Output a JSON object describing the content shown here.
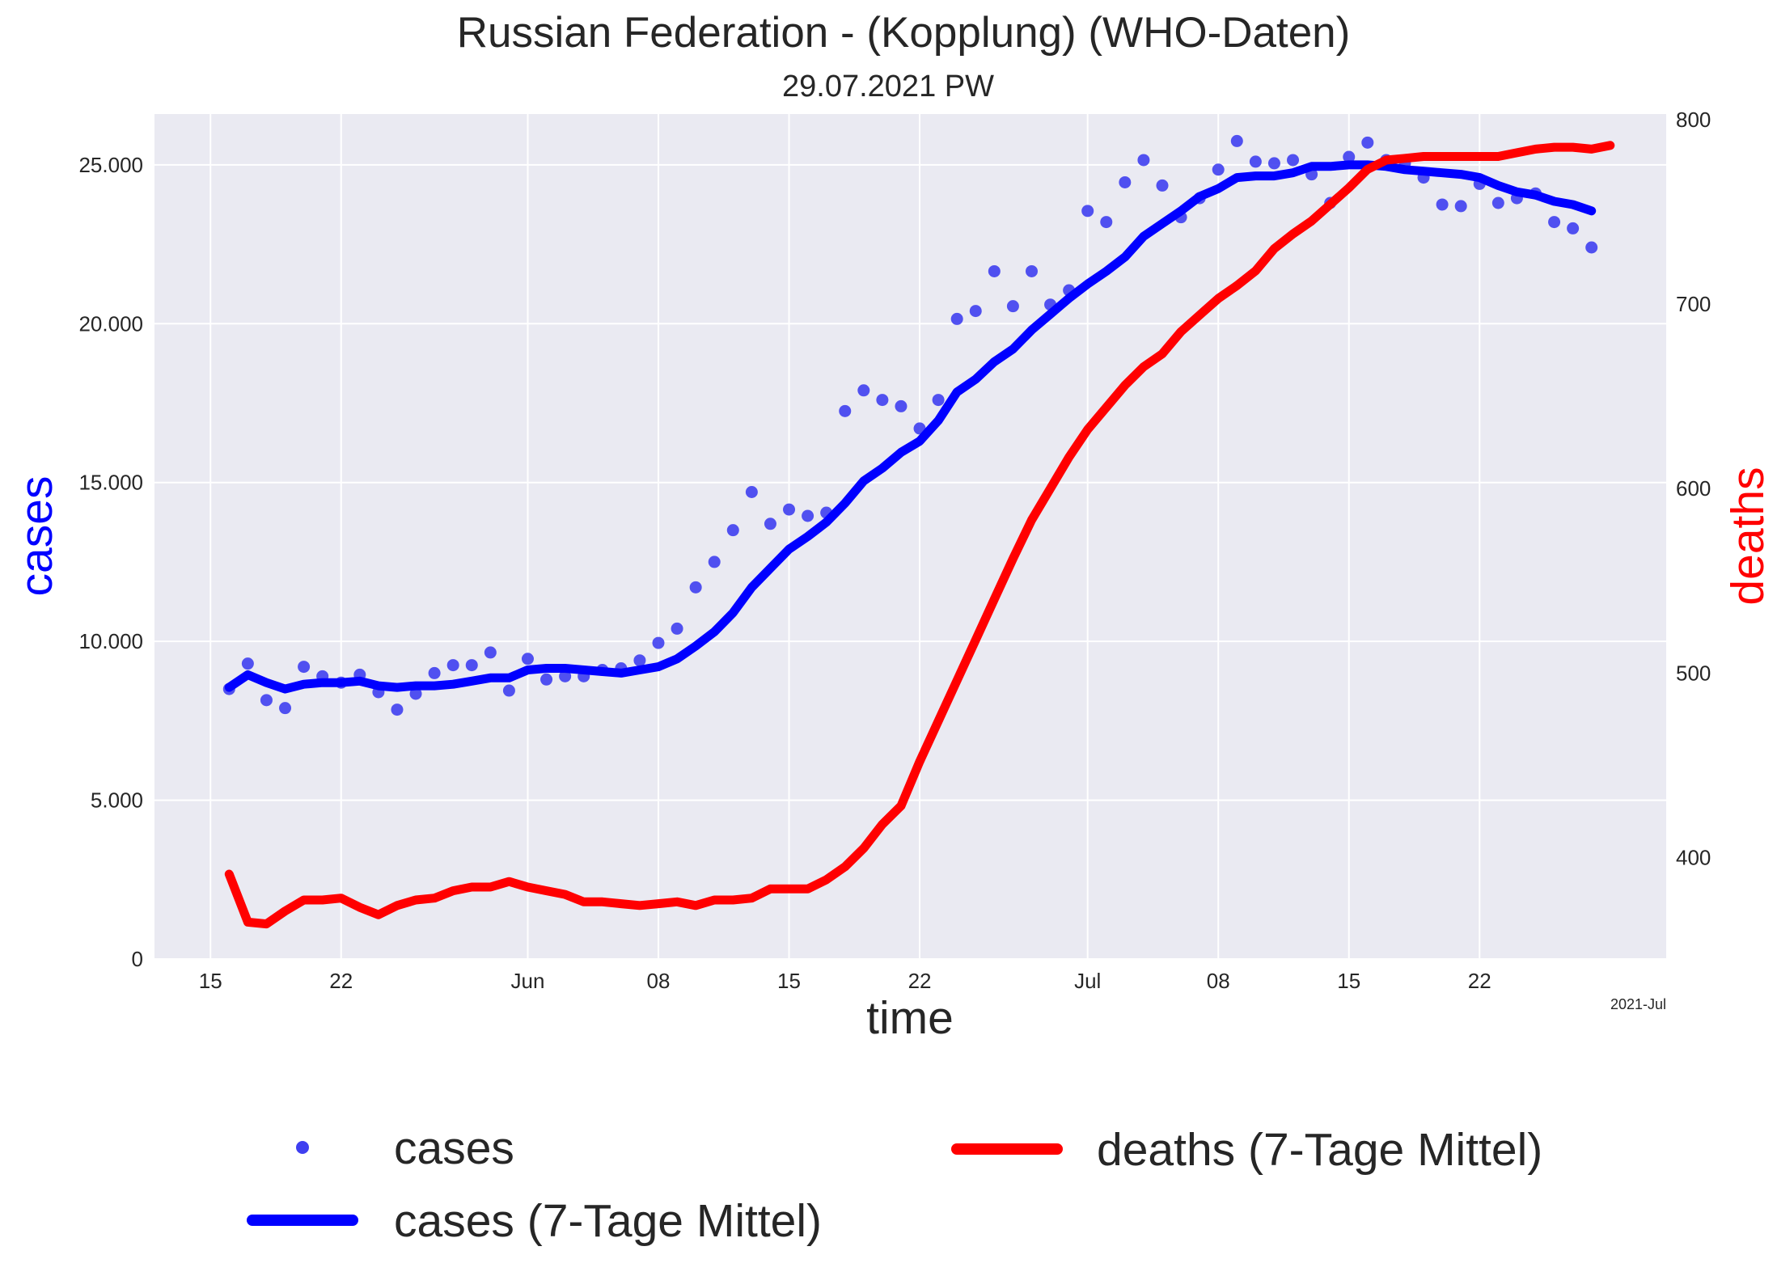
{
  "chart_data": {
    "type": "line",
    "title": "Russian Federation - (Kopplung)  (WHO-Daten)",
    "subtitle": "29.07.2021 PW",
    "xlabel": "time",
    "ylabel_left": "cases",
    "ylabel_right": "deaths",
    "x_corner_label": "2021-Jul",
    "x_ticks": [
      {
        "date": "2021-05-15",
        "label": "15"
      },
      {
        "date": "2021-05-22",
        "label": "22"
      },
      {
        "date": "2021-06-01",
        "label": "Jun"
      },
      {
        "date": "2021-06-08",
        "label": "08"
      },
      {
        "date": "2021-06-15",
        "label": "15"
      },
      {
        "date": "2021-06-22",
        "label": "22"
      },
      {
        "date": "2021-07-01",
        "label": "Jul"
      },
      {
        "date": "2021-07-08",
        "label": "08"
      },
      {
        "date": "2021-07-15",
        "label": "15"
      },
      {
        "date": "2021-07-22",
        "label": "22"
      }
    ],
    "y_left_ticks": [
      {
        "value": 0,
        "label": "0"
      },
      {
        "value": 5000,
        "label": "5.000"
      },
      {
        "value": 10000,
        "label": "10.000"
      },
      {
        "value": 15000,
        "label": "15.000"
      },
      {
        "value": 20000,
        "label": "20.000"
      },
      {
        "value": 25000,
        "label": "25.000"
      }
    ],
    "y_right_ticks": [
      {
        "value": 400,
        "label": "400"
      },
      {
        "value": 500,
        "label": "500"
      },
      {
        "value": 600,
        "label": "600"
      },
      {
        "value": 700,
        "label": "700"
      },
      {
        "value": 800,
        "label": "800"
      }
    ],
    "xlim": [
      "2021-05-12",
      "2021-08-01"
    ],
    "ylim_left": [
      0,
      26600
    ],
    "ylim_right": [
      345,
      803
    ],
    "grid": true,
    "legend_position": "bottom",
    "legend": {
      "cases": "cases",
      "cases_avg": "cases (7-Tage Mittel)",
      "deaths_avg": "deaths (7-Tage Mittel)"
    },
    "x_dates": [
      "2021-05-16",
      "2021-05-17",
      "2021-05-18",
      "2021-05-19",
      "2021-05-20",
      "2021-05-21",
      "2021-05-22",
      "2021-05-23",
      "2021-05-24",
      "2021-05-25",
      "2021-05-26",
      "2021-05-27",
      "2021-05-28",
      "2021-05-29",
      "2021-05-30",
      "2021-05-31",
      "2021-06-01",
      "2021-06-02",
      "2021-06-03",
      "2021-06-04",
      "2021-06-05",
      "2021-06-06",
      "2021-06-07",
      "2021-06-08",
      "2021-06-09",
      "2021-06-10",
      "2021-06-11",
      "2021-06-12",
      "2021-06-13",
      "2021-06-14",
      "2021-06-15",
      "2021-06-16",
      "2021-06-17",
      "2021-06-18",
      "2021-06-19",
      "2021-06-20",
      "2021-06-21",
      "2021-06-22",
      "2021-06-23",
      "2021-06-24",
      "2021-06-25",
      "2021-06-26",
      "2021-06-27",
      "2021-06-28",
      "2021-06-29",
      "2021-06-30",
      "2021-07-01",
      "2021-07-02",
      "2021-07-03",
      "2021-07-04",
      "2021-07-05",
      "2021-07-06",
      "2021-07-07",
      "2021-07-08",
      "2021-07-09",
      "2021-07-10",
      "2021-07-11",
      "2021-07-12",
      "2021-07-13",
      "2021-07-14",
      "2021-07-15",
      "2021-07-16",
      "2021-07-17",
      "2021-07-18",
      "2021-07-19",
      "2021-07-20",
      "2021-07-21",
      "2021-07-22",
      "2021-07-23",
      "2021-07-24",
      "2021-07-25",
      "2021-07-26",
      "2021-07-27",
      "2021-07-28",
      "2021-07-29"
    ],
    "series": [
      {
        "name": "cases",
        "axis": "left",
        "style": "scatter",
        "color": "#3f3ff0",
        "values": [
          8500,
          9300,
          8150,
          7900,
          9200,
          8900,
          8700,
          8950,
          8400,
          7850,
          8350,
          9000,
          9250,
          9250,
          9650,
          8450,
          9450,
          8800,
          8900,
          8900,
          9100,
          9150,
          9400,
          9950,
          10400,
          11700,
          12500,
          13500,
          14700,
          13700,
          14150,
          13950,
          14050,
          17250,
          17900,
          17600,
          17400,
          16700,
          17600,
          20150,
          20400,
          21650,
          20550,
          21650,
          20600,
          21050,
          23550,
          23200,
          24450,
          25150,
          24350,
          23350,
          23950,
          24850,
          25750,
          25100,
          25050,
          25150,
          24700,
          23800,
          25250,
          25700,
          25150,
          25050,
          24600,
          23750,
          23700,
          24400,
          23800,
          23950,
          24100,
          23200,
          23000,
          22400,
          null
        ]
      },
      {
        "name": "cases (7-Tage Mittel)",
        "axis": "left",
        "style": "line",
        "color": "#0000ff",
        "values": [
          8550,
          8950,
          8700,
          8500,
          8650,
          8700,
          8700,
          8750,
          8600,
          8550,
          8600,
          8600,
          8650,
          8750,
          8850,
          8850,
          9100,
          9150,
          9150,
          9100,
          9050,
          9000,
          9100,
          9200,
          9450,
          9850,
          10300,
          10900,
          11700,
          12300,
          12900,
          13300,
          13750,
          14350,
          15050,
          15450,
          15950,
          16300,
          16950,
          17850,
          18250,
          18800,
          19200,
          19800,
          20300,
          20800,
          21250,
          21650,
          22100,
          22750,
          23150,
          23550,
          24000,
          24250,
          24600,
          24650,
          24650,
          24750,
          24950,
          24950,
          25000,
          25000,
          24950,
          24850,
          24800,
          24750,
          24700,
          24600,
          24350,
          24150,
          24050,
          23850,
          23750,
          23550,
          null
        ]
      },
      {
        "name": "deaths (7-Tage Mittel)",
        "axis": "right",
        "style": "line",
        "color": "#ff0000",
        "values": [
          391,
          365,
          364,
          371,
          377,
          377,
          378,
          373,
          369,
          374,
          377,
          378,
          382,
          384,
          384,
          387,
          384,
          382,
          380,
          376,
          376,
          375,
          374,
          375,
          376,
          374,
          377,
          377,
          378,
          383,
          383,
          383,
          388,
          395,
          405,
          418,
          428,
          452,
          474,
          496,
          518,
          540,
          562,
          583,
          600,
          617,
          632,
          644,
          656,
          666,
          673,
          685,
          694,
          703,
          710,
          718,
          730,
          738,
          745,
          754,
          763,
          773,
          778,
          779,
          780,
          780,
          780,
          780,
          780,
          782,
          784,
          785,
          785,
          784,
          786
        ]
      }
    ]
  }
}
